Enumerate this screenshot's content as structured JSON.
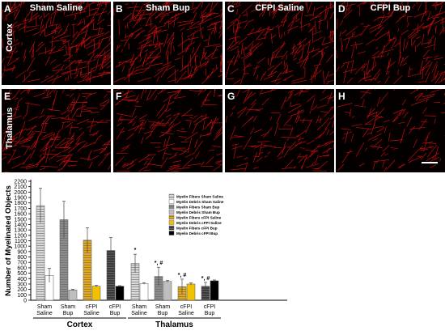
{
  "figure": {
    "panels": [
      {
        "letter": "A",
        "title": "Sham Saline",
        "row_label": "Cortex",
        "density": 1.0
      },
      {
        "letter": "B",
        "title": "Sham Bup",
        "row_label": "",
        "density": 0.9
      },
      {
        "letter": "C",
        "title": "CFPI Saline",
        "row_label": "",
        "density": 0.85
      },
      {
        "letter": "D",
        "title": "CFPI Bup",
        "row_label": "",
        "density": 0.75
      },
      {
        "letter": "E",
        "title": "",
        "row_label": "Thalamus",
        "density": 0.8
      },
      {
        "letter": "F",
        "title": "",
        "row_label": "",
        "density": 0.7
      },
      {
        "letter": "G",
        "title": "",
        "row_label": "",
        "density": 0.6
      },
      {
        "letter": "H",
        "title": "",
        "row_label": "",
        "density": 0.45
      }
    ],
    "fiber_color": "#e01010",
    "background_color": "#050000"
  },
  "chart_data": {
    "type": "bar",
    "ylabel": "Number of Myelinated Objects",
    "ylim": [
      0,
      2200
    ],
    "yticks": [
      0,
      100,
      200,
      300,
      400,
      500,
      600,
      700,
      800,
      900,
      1000,
      1100,
      1200,
      1300,
      1400,
      1500,
      1600,
      1700,
      1800,
      1900,
      2000,
      2100,
      2200
    ],
    "groups": [
      {
        "name": "Cortex",
        "categories": [
          "Sham Saline",
          "Sham Bup",
          "cFPI Saline",
          "cFPI Bup"
        ]
      },
      {
        "name": "Thalamus",
        "categories": [
          "Sham Saline",
          "Sham Bup",
          "cFPI Saline",
          "cFPI Bup"
        ]
      }
    ],
    "category_lines": [
      [
        "Sham",
        "Saline"
      ],
      [
        "Sham",
        "Bup"
      ],
      [
        "cFPI",
        "Saline"
      ],
      [
        "cFPI",
        "Bup"
      ],
      [
        "Sham",
        "Saline"
      ],
      [
        "Sham",
        "Bup"
      ],
      [
        "cFPI",
        "Saline"
      ],
      [
        "cFPI",
        "Bup"
      ]
    ],
    "series": [
      {
        "name": "Myelin Fibers",
        "values": [
          1750,
          1490,
          1110,
          920,
          680,
          440,
          250,
          260
        ],
        "errors": [
          320,
          340,
          230,
          240,
          170,
          170,
          140,
          70
        ]
      },
      {
        "name": "Myelin Debris",
        "values": [
          460,
          190,
          260,
          260,
          310,
          350,
          300,
          360
        ],
        "errors": [
          130,
          15,
          15,
          10,
          15,
          15,
          20,
          15
        ]
      }
    ],
    "bar_colors": [
      {
        "fill": "#d9d9d9",
        "pattern": "hlines"
      },
      {
        "fill": "#ffffff",
        "pattern": "none"
      },
      {
        "fill": "#8c8c8c",
        "pattern": "hlines"
      },
      {
        "fill": "#bfbfbf",
        "pattern": "none"
      },
      {
        "fill": "#e6a817",
        "pattern": "hlines"
      },
      {
        "fill": "#f2c200",
        "pattern": "none"
      },
      {
        "fill": "#3a3a3a",
        "pattern": "hlines"
      },
      {
        "fill": "#000000",
        "pattern": "none"
      }
    ],
    "annotations": [
      {
        "index": 4,
        "text": "*"
      },
      {
        "index": 5,
        "text": "*, #"
      },
      {
        "index": 6,
        "text": "*, #"
      },
      {
        "index": 7,
        "text": "*, #"
      }
    ],
    "legend": [
      "Myelin Fibers Sham Saline",
      "Myelin Debris Sham Saline",
      "Myelin Fibers Sham Bup",
      "Myelin Debris Sham Bup",
      "Myelin Fibers cFPI Saline",
      "Myelin Debris cFPI Saline",
      "Myelin Fibers cFPI Bup",
      "Myelin Debris cFPI Bup"
    ],
    "legend_position": "top-right"
  }
}
